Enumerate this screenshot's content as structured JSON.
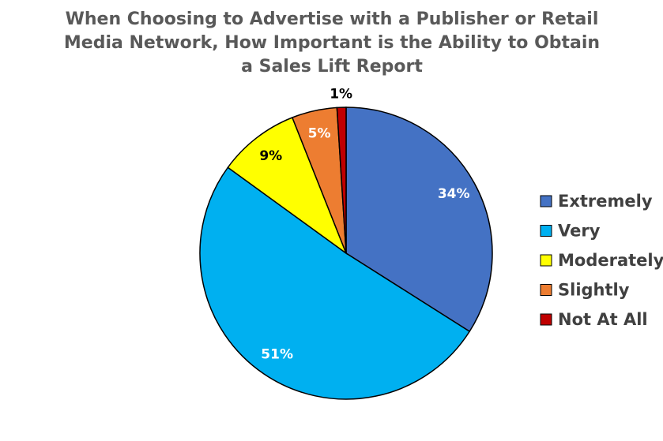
{
  "chart_data": {
    "type": "pie",
    "title": "When Choosing to Advertise with a Publisher or Retail Media Network, How Important is the Ability to Obtain a Sales Lift Report",
    "categories": [
      "Extremely",
      "Very",
      "Moderately",
      "Slightly",
      "Not At All"
    ],
    "values": [
      34,
      51,
      9,
      5,
      1
    ],
    "value_labels": [
      "34%",
      "51%",
      "9%",
      "5%",
      "1%"
    ],
    "colors": [
      "#4472c4",
      "#00b0f0",
      "#ffff00",
      "#ed7d31",
      "#c00000"
    ],
    "legend": "right"
  }
}
